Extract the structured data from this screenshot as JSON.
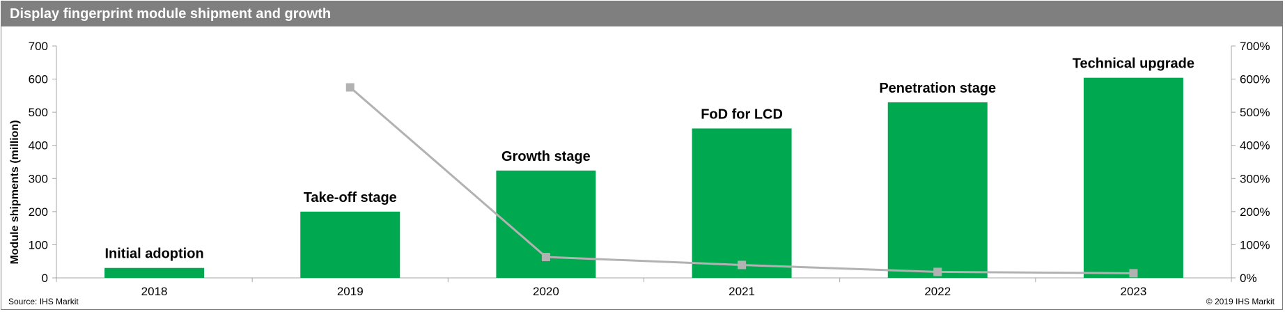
{
  "chart_data": {
    "type": "bar",
    "title": "Display fingerprint module shipment and growth",
    "categories": [
      "2018",
      "2019",
      "2020",
      "2021",
      "2022",
      "2023"
    ],
    "series": [
      {
        "values": [
          30,
          200,
          324,
          451,
          530,
          604
        ],
        "type": "bar",
        "color": "#00a94f",
        "axis": "left"
      },
      {
        "values": [
          null,
          5.75,
          0.63,
          0.39,
          0.18,
          0.14
        ],
        "type": "line",
        "color": "#b2b2b2",
        "axis": "right"
      }
    ],
    "annotations": [
      "Initial adoption",
      "Take-off stage",
      "Growth stage",
      "FoD for LCD",
      "Penetration stage",
      "Technical upgrade"
    ],
    "ylabel": "Module shipments (million)",
    "ylim": [
      0,
      700
    ],
    "yticks": [
      "0",
      "100",
      "200",
      "300",
      "400",
      "500",
      "600",
      "700"
    ],
    "y2lim": [
      0,
      7
    ],
    "y2ticks": [
      "0%",
      "100%",
      "200%",
      "300%",
      "400%",
      "500%",
      "600%",
      "700%"
    ],
    "grid": false,
    "legend": "none"
  },
  "footer": {
    "source": "Source: IHS Markit",
    "copyright": "© 2019 IHS Markit"
  }
}
